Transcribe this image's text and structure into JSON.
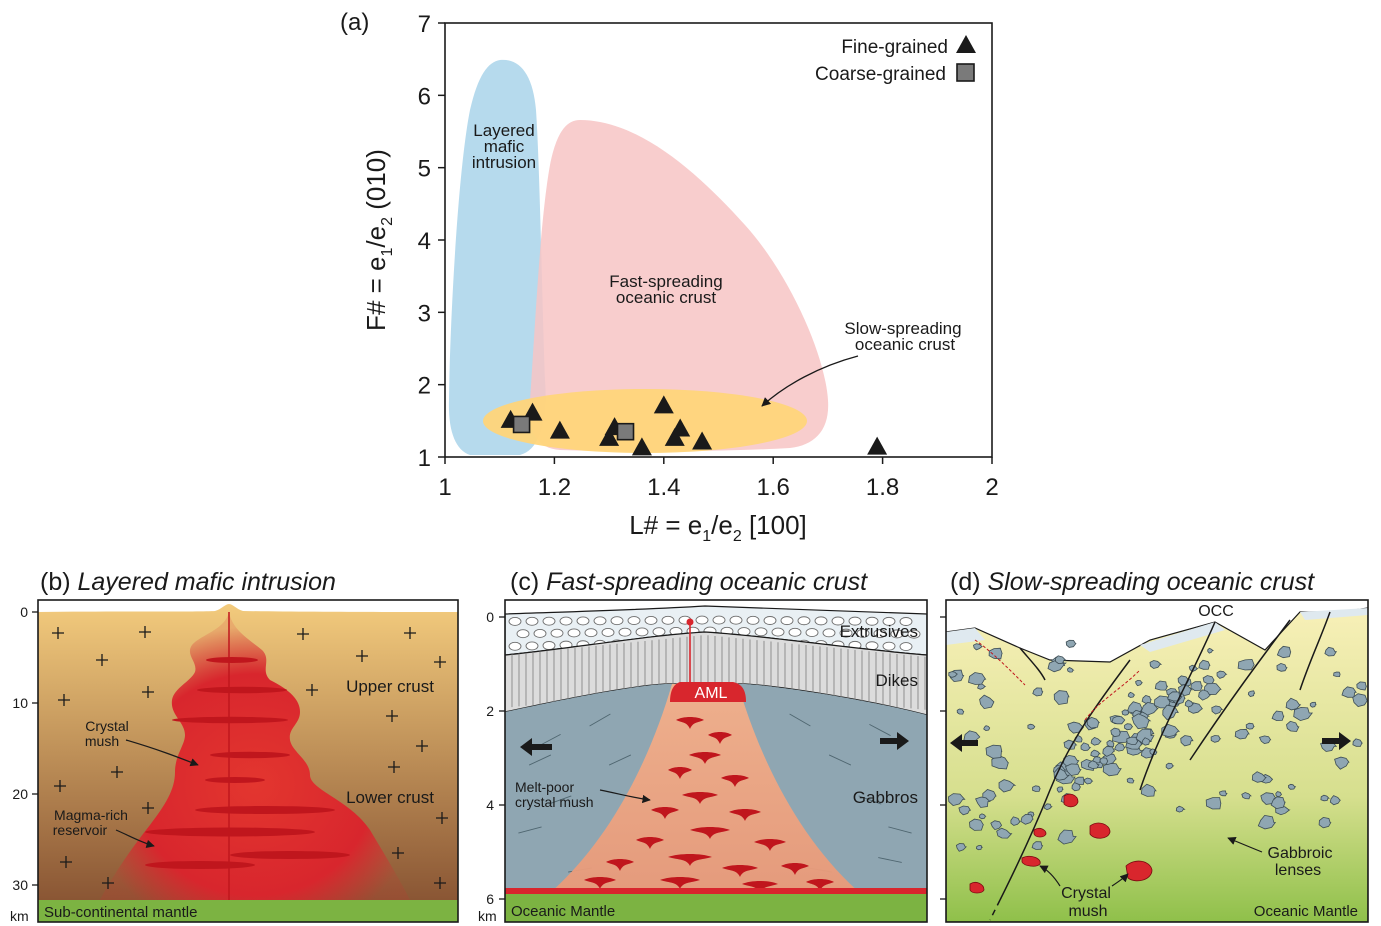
{
  "colors": {
    "layered": "#a9d3ea",
    "fast": "#f7c4c4",
    "slow": "#ffd57a",
    "magma": "#d8262d",
    "gabbro": "#8fa6b2",
    "mantle": "#7cb342",
    "crustTop": "#f2c97a",
    "crustBottom": "#8b5a36"
  },
  "panel_a": {
    "label": "(a)",
    "xlabel_pre": "L# = e",
    "xlabel_sub1": "1",
    "xlabel_mid": "/e",
    "xlabel_sub2": "2",
    "xlabel_post": " [100]",
    "ylabel_pre": "F# = e",
    "ylabel_sub1": "1",
    "ylabel_mid": "/e",
    "ylabel_sub2": "2",
    "ylabel_post": " (010)",
    "xticks": [
      "1",
      "1.2",
      "1.4",
      "1.6",
      "1.8",
      "2"
    ],
    "yticks": [
      "1",
      "2",
      "3",
      "4",
      "5",
      "6",
      "7"
    ],
    "legend": {
      "fine": "Fine-grained",
      "coarse": "Coarse-grained"
    },
    "region_layered": [
      "Layered",
      "mafic",
      "intrusion"
    ],
    "region_fast": [
      "Fast-spreading",
      "oceanic crust"
    ],
    "region_slow": [
      "Slow-spreading",
      "oceanic crust"
    ]
  },
  "chart_data": {
    "type": "scatter",
    "xlim": [
      1,
      2
    ],
    "ylim": [
      1,
      7
    ],
    "xlabel": "L# = e1/e2 [100]",
    "ylabel": "F# = e1/e2 (010)",
    "series": [
      {
        "name": "Fine-grained",
        "x": [
          1.12,
          1.16,
          1.21,
          1.3,
          1.31,
          1.36,
          1.4,
          1.42,
          1.43,
          1.47,
          1.79
        ],
        "y": [
          1.5,
          1.6,
          1.35,
          1.25,
          1.4,
          1.12,
          1.7,
          1.25,
          1.38,
          1.2,
          1.13
        ]
      },
      {
        "name": "Coarse-grained",
        "x": [
          1.14,
          1.33
        ],
        "y": [
          1.45,
          1.35
        ]
      }
    ]
  },
  "panel_b": {
    "title_prefix": "(b) ",
    "title": "Layered mafic intrusion",
    "depth_ticks": [
      "0",
      "10",
      "20",
      "30"
    ],
    "unit": "km",
    "upper_crust": "Upper crust",
    "lower_crust": "Lower crust",
    "crystal_mush": [
      "Crystal",
      "mush"
    ],
    "magma_reservoir": [
      "Magma-rich",
      "reservoir"
    ],
    "mantle": "Sub-continental mantle"
  },
  "panel_c": {
    "title_prefix": "(c) ",
    "title": "Fast-spreading oceanic crust",
    "depth_ticks": [
      "0",
      "2",
      "4",
      "6"
    ],
    "unit": "km",
    "extrusives": "Extrusives",
    "dikes": "Dikes",
    "aml": "AML",
    "gabbros": "Gabbros",
    "melt_poor": [
      "Melt-poor",
      "crystal mush"
    ],
    "mantle": "Oceanic Mantle"
  },
  "panel_d": {
    "title_prefix": "(d) ",
    "title": "Slow-spreading oceanic crust",
    "occ": "OCC",
    "crystal_mush": [
      "Crystal",
      "mush"
    ],
    "gabbroic_lenses": [
      "Gabbroic",
      "lenses"
    ],
    "mantle": "Oceanic Mantle"
  }
}
